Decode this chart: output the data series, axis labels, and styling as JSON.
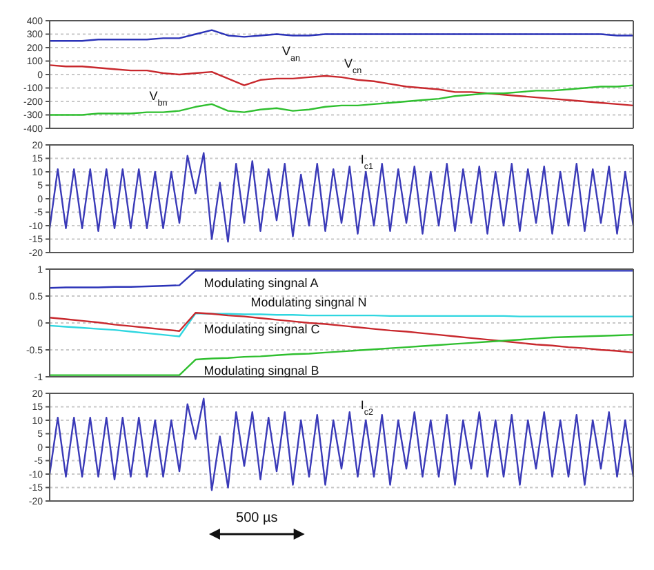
{
  "chart_data": [
    {
      "type": "line",
      "categories": [
        null,
        null,
        null,
        null,
        null,
        null,
        null,
        null,
        null,
        null,
        null,
        null,
        null,
        null,
        null,
        null,
        null,
        null,
        null,
        null,
        null,
        null,
        null,
        null,
        null,
        null,
        null,
        null,
        null,
        null,
        null,
        null,
        null,
        null,
        null,
        null,
        null
      ],
      "ylim": [
        -400,
        400
      ],
      "yticks": [
        400,
        300,
        200,
        100,
        0,
        -100,
        -200,
        -300,
        -400
      ],
      "grid": "y",
      "tick_labels": "y",
      "series": [
        {
          "name": "V$_{an}$",
          "color": "#2b33b8",
          "values": [
            250,
            250,
            250,
            260,
            260,
            260,
            260,
            270,
            270,
            300,
            330,
            290,
            280,
            290,
            300,
            290,
            290,
            300,
            300,
            300,
            300,
            300,
            300,
            300,
            300,
            300,
            300,
            300,
            300,
            300,
            300,
            300,
            300,
            300,
            300,
            290,
            290
          ]
        },
        {
          "name": "V$_{cn}$",
          "color": "#c8282d",
          "values": [
            70,
            60,
            60,
            50,
            40,
            30,
            30,
            10,
            0,
            10,
            20,
            -30,
            -80,
            -40,
            -30,
            -30,
            -20,
            -10,
            -20,
            -40,
            -50,
            -70,
            -90,
            -100,
            -110,
            -130,
            -130,
            -140,
            -150,
            -160,
            -170,
            -180,
            -190,
            -200,
            -210,
            -220,
            -230
          ]
        },
        {
          "name": "V$_{bn}$",
          "color": "#2fbf2f",
          "values": [
            -300,
            -300,
            -300,
            -290,
            -290,
            -290,
            -280,
            -280,
            -270,
            -240,
            -220,
            -270,
            -280,
            -260,
            -250,
            -270,
            -260,
            -240,
            -230,
            -230,
            -220,
            -210,
            -200,
            -190,
            -180,
            -160,
            -150,
            -140,
            -140,
            -130,
            -120,
            -120,
            -110,
            -100,
            -90,
            -90,
            -80
          ]
        }
      ]
    },
    {
      "type": "line",
      "categories": [
        null,
        null,
        null,
        null,
        null,
        null,
        null,
        null,
        null,
        null,
        null,
        null,
        null,
        null,
        null,
        null,
        null,
        null,
        null,
        null,
        null,
        null,
        null,
        null,
        null,
        null,
        null,
        null,
        null,
        null,
        null,
        null,
        null,
        null,
        null,
        null,
        null,
        null,
        null,
        null,
        null,
        null,
        null,
        null,
        null,
        null,
        null,
        null,
        null,
        null,
        null,
        null,
        null,
        null,
        null,
        null,
        null,
        null,
        null,
        null,
        null,
        null,
        null,
        null,
        null,
        null,
        null,
        null,
        null,
        null,
        null,
        null,
        null
      ],
      "ylim": [
        -20,
        20
      ],
      "yticks": [
        20,
        15,
        10,
        5,
        0,
        -5,
        -10,
        -15,
        -20
      ],
      "grid": "y",
      "tick_labels": "y",
      "series": [
        {
          "name": "I$_{c1}$",
          "color": "#3a3ab8",
          "values": [
            -11,
            11,
            -11,
            11,
            -11,
            11,
            -12,
            11,
            -11,
            11,
            -11,
            11,
            -11,
            10,
            -11,
            10,
            -9,
            16,
            2,
            17,
            -15,
            6,
            -16,
            13,
            -9,
            14,
            -12,
            11,
            -8,
            13,
            -14,
            9,
            -10,
            13,
            -12,
            11,
            -9,
            12,
            -13,
            10,
            -10,
            13,
            -12,
            11,
            -9,
            12,
            -13,
            10,
            -10,
            13,
            -12,
            11,
            -9,
            12,
            -13,
            10,
            -10,
            13,
            -12,
            11,
            -9,
            12,
            -13,
            10,
            -10,
            13,
            -12,
            11,
            -9,
            12,
            -13,
            10,
            -10
          ]
        }
      ]
    },
    {
      "type": "line",
      "categories": [
        null,
        null,
        null,
        null,
        null,
        null,
        null,
        null,
        null,
        null,
        null,
        null,
        null,
        null,
        null,
        null,
        null,
        null,
        null,
        null,
        null,
        null,
        null,
        null,
        null,
        null,
        null,
        null,
        null,
        null,
        null,
        null,
        null,
        null,
        null,
        null,
        null
      ],
      "ylim": [
        -1,
        1
      ],
      "yticks": [
        1,
        0.5,
        0,
        -0.5,
        -1
      ],
      "grid": "y",
      "tick_labels": "y",
      "series": [
        {
          "name": "Modulating singnal A",
          "color": "#2b33b8",
          "values": [
            0.65,
            0.66,
            0.66,
            0.66,
            0.67,
            0.67,
            0.68,
            0.69,
            0.7,
            0.97,
            0.97,
            0.97,
            0.97,
            0.97,
            0.97,
            0.97,
            0.97,
            0.97,
            0.97,
            0.97,
            0.97,
            0.97,
            0.97,
            0.97,
            0.97,
            0.97,
            0.97,
            0.97,
            0.97,
            0.97,
            0.97,
            0.97,
            0.97,
            0.97,
            0.97,
            0.97,
            0.97
          ]
        },
        {
          "name": "Modulating singnal N",
          "color": "#2fd6e0",
          "values": [
            -0.05,
            -0.07,
            -0.09,
            -0.11,
            -0.13,
            -0.16,
            -0.19,
            -0.22,
            -0.25,
            0.18,
            0.17,
            0.17,
            0.16,
            0.16,
            0.15,
            0.15,
            0.14,
            0.14,
            0.14,
            0.14,
            0.14,
            0.13,
            0.13,
            0.13,
            0.13,
            0.13,
            0.13,
            0.13,
            0.13,
            0.12,
            0.12,
            0.12,
            0.12,
            0.12,
            0.12,
            0.12,
            0.12
          ]
        },
        {
          "name": "Modulating singnal C",
          "color": "#c8282d",
          "values": [
            0.1,
            0.07,
            0.04,
            0.01,
            -0.03,
            -0.06,
            -0.09,
            -0.12,
            -0.15,
            0.19,
            0.17,
            0.14,
            0.12,
            0.09,
            0.06,
            0.03,
            0,
            -0.02,
            -0.05,
            -0.08,
            -0.11,
            -0.14,
            -0.16,
            -0.19,
            -0.22,
            -0.25,
            -0.28,
            -0.31,
            -0.34,
            -0.37,
            -0.4,
            -0.42,
            -0.45,
            -0.47,
            -0.5,
            -0.52,
            -0.55
          ]
        },
        {
          "name": "Modulating singnal B",
          "color": "#2fbf2f",
          "values": [
            -0.97,
            -0.97,
            -0.97,
            -0.97,
            -0.97,
            -0.97,
            -0.97,
            -0.97,
            -0.97,
            -0.68,
            -0.66,
            -0.65,
            -0.63,
            -0.62,
            -0.6,
            -0.58,
            -0.57,
            -0.55,
            -0.53,
            -0.51,
            -0.49,
            -0.47,
            -0.45,
            -0.43,
            -0.41,
            -0.39,
            -0.37,
            -0.35,
            -0.33,
            -0.31,
            -0.29,
            -0.27,
            -0.26,
            -0.25,
            -0.24,
            -0.23,
            -0.22
          ]
        }
      ]
    },
    {
      "type": "line",
      "categories": [
        null,
        null,
        null,
        null,
        null,
        null,
        null,
        null,
        null,
        null,
        null,
        null,
        null,
        null,
        null,
        null,
        null,
        null,
        null,
        null,
        null,
        null,
        null,
        null,
        null,
        null,
        null,
        null,
        null,
        null,
        null,
        null,
        null,
        null,
        null,
        null,
        null,
        null,
        null,
        null,
        null,
        null,
        null,
        null,
        null,
        null,
        null,
        null,
        null,
        null,
        null,
        null,
        null,
        null,
        null,
        null,
        null,
        null,
        null,
        null,
        null,
        null,
        null,
        null,
        null,
        null,
        null,
        null,
        null,
        null,
        null,
        null,
        null
      ],
      "ylim": [
        -20,
        20
      ],
      "yticks": [
        20,
        15,
        10,
        5,
        0,
        -5,
        -10,
        -15,
        -20
      ],
      "grid": "y",
      "tick_labels": "y",
      "annotations": [
        "500 µs"
      ],
      "series": [
        {
          "name": "I$_{c2}$",
          "color": "#3a3ab8",
          "values": [
            -10,
            11,
            -11,
            11,
            -11,
            11,
            -11,
            11,
            -12,
            11,
            -11,
            11,
            -11,
            10,
            -11,
            10,
            -9,
            16,
            3,
            18,
            -16,
            4,
            -15,
            13,
            -7,
            13,
            -12,
            11,
            -9,
            13,
            -14,
            10,
            -11,
            12,
            -14,
            10,
            -8,
            13,
            -11,
            10,
            -11,
            12,
            -14,
            10,
            -8,
            13,
            -11,
            10,
            -11,
            12,
            -14,
            10,
            -8,
            13,
            -11,
            10,
            -11,
            12,
            -14,
            10,
            -8,
            13,
            -11,
            10,
            -11,
            12,
            -14,
            10,
            -8,
            13,
            -11,
            10,
            -11
          ]
        }
      ]
    }
  ]
}
